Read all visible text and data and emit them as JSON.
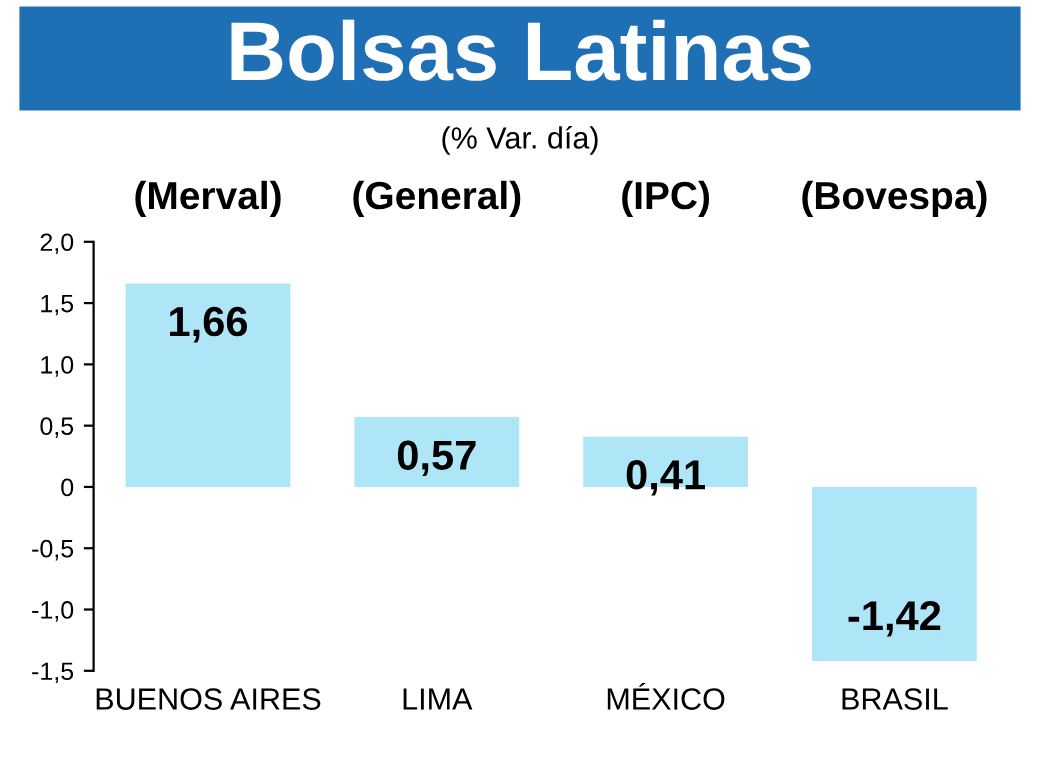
{
  "chart_data": {
    "type": "bar",
    "title": "Bolsas Latinas",
    "subtitle": "(% Var. día)",
    "categories": [
      "BUENOS AIRES",
      "LIMA",
      "MÉXICO",
      "BRASIL"
    ],
    "values": [
      1.66,
      0.57,
      0.41,
      -1.42
    ],
    "value_labels": [
      "1,66",
      "0,57",
      "0,41",
      "-1,42"
    ],
    "color": "#aee6f7",
    "ylim": [
      -1.5,
      2.0
    ],
    "yticks": [
      {
        "value": -1.5,
        "label": "-1,5"
      },
      {
        "value": -1.0,
        "label": "-1,0"
      },
      {
        "value": -0.5,
        "label": "-0,5"
      },
      {
        "value": 0,
        "label": "0"
      },
      {
        "value": 0.5,
        "label": "0,5"
      },
      {
        "value": 1.0,
        "label": "1,0"
      },
      {
        "value": 1.5,
        "label": "1,5"
      },
      {
        "value": 2.0,
        "label": "2,0"
      }
    ],
    "annotations": [
      "(Merval)",
      "(General)",
      "(IPC)",
      "(Bovespa)"
    ],
    "grid": false
  }
}
